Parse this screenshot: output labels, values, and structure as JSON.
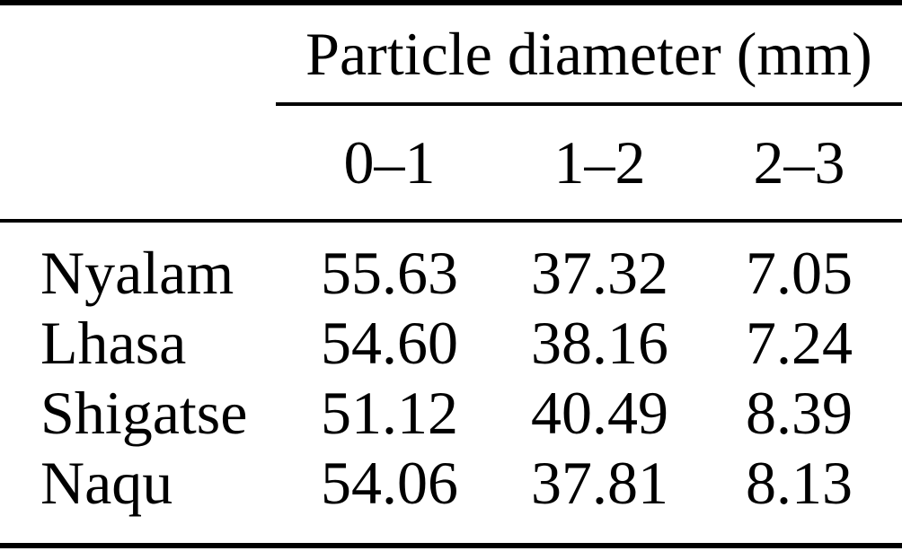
{
  "table": {
    "column_group_header": "Particle diameter (mm)",
    "sub_headers": [
      "0–1",
      "1–2",
      "2–3"
    ],
    "rows": [
      {
        "label": "Nyalam",
        "values": [
          "55.63",
          "37.32",
          "7.05"
        ]
      },
      {
        "label": "Lhasa",
        "values": [
          "54.60",
          "38.16",
          "7.24"
        ]
      },
      {
        "label": "Shigatse",
        "values": [
          "51.12",
          "40.49",
          "8.39"
        ]
      },
      {
        "label": "Naqu",
        "values": [
          "54.06",
          "37.81",
          "8.13"
        ]
      }
    ],
    "colors": {
      "text": "#000000",
      "background": "#ffffff",
      "rule": "#000000"
    }
  },
  "chart_data": {
    "type": "table",
    "title": "Particle diameter (mm)",
    "columns": [
      "",
      "0–1",
      "1–2",
      "2–3"
    ],
    "rows": [
      [
        "Nyalam",
        "55.63",
        "37.32",
        "7.05"
      ],
      [
        "Lhasa",
        "54.60",
        "38.16",
        "7.24"
      ],
      [
        "Shigatse",
        "51.12",
        "40.49",
        "8.39"
      ],
      [
        "Naqu",
        "54.06",
        "37.81",
        "8.13"
      ]
    ]
  }
}
